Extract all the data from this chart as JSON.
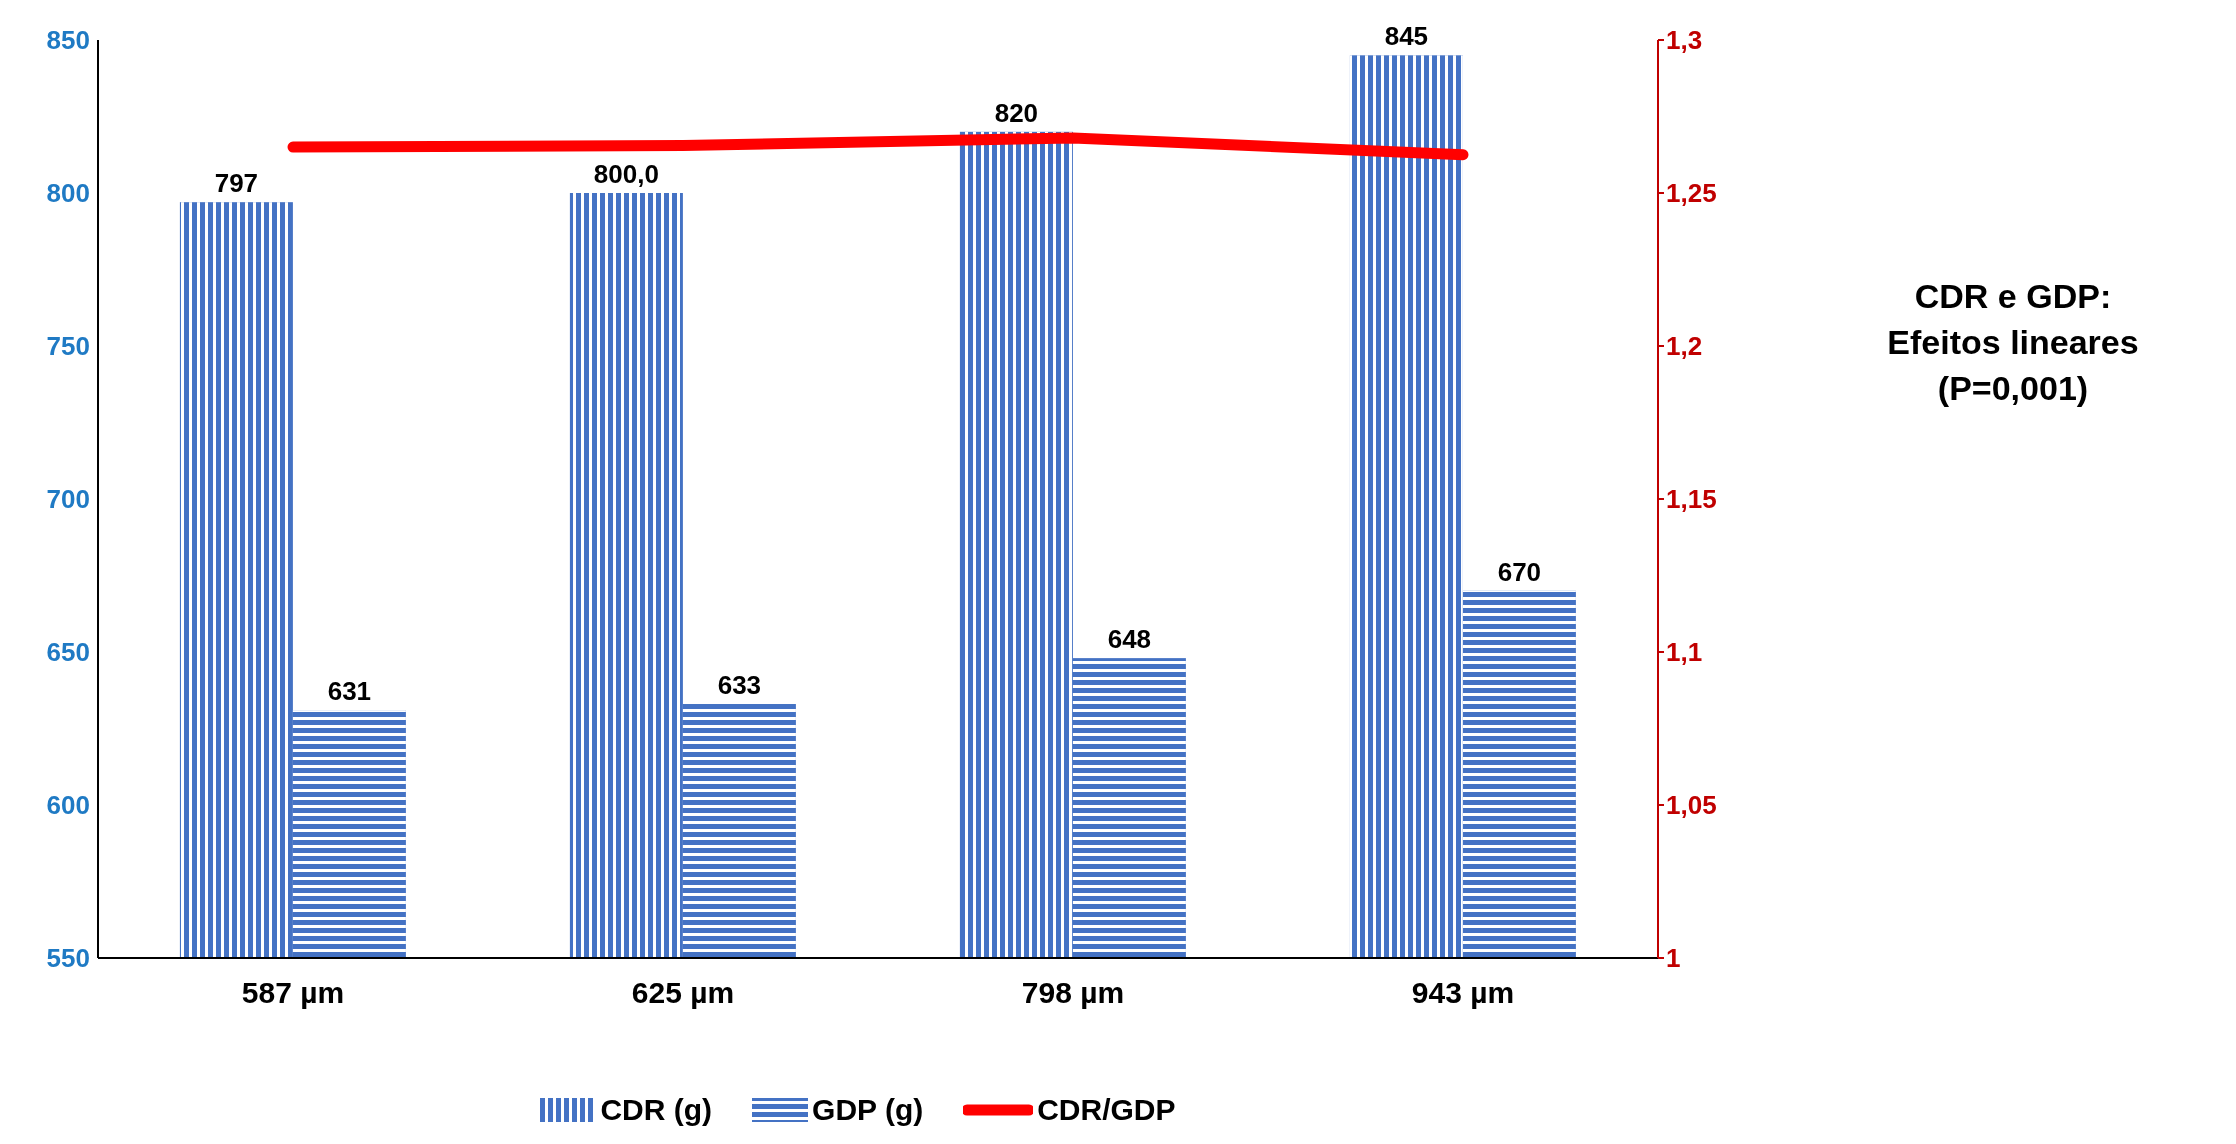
{
  "chart_data": {
    "type": "bar",
    "categories": [
      "587 µm",
      "625 µm",
      "798 µm",
      "943 µm"
    ],
    "series": [
      {
        "name": "CDR (g)",
        "color": "#4472c4",
        "values": [
          797,
          800,
          820,
          845
        ],
        "value_labels": [
          "797",
          "800,0",
          "820",
          "845"
        ]
      },
      {
        "name": "GDP (g)",
        "color": "#4472c4",
        "values": [
          631,
          633,
          648,
          670
        ],
        "value_labels": [
          "631",
          "633",
          "648",
          "670"
        ]
      },
      {
        "name": "CDR/GDP",
        "type": "line",
        "axis": "y2",
        "color": "#ff0000",
        "values": [
          1.265,
          1.2655,
          1.268,
          1.2625
        ]
      }
    ],
    "ylim": [
      550,
      850
    ],
    "yticks": [
      550,
      600,
      650,
      700,
      750,
      800,
      850
    ],
    "y2lim": [
      1,
      1.3
    ],
    "y2ticks": [
      1,
      {
        "value": 1.05,
        "label": "1,05"
      },
      {
        "value": 1.1,
        "label": "1,1"
      },
      {
        "value": 1.15,
        "label": "1,15"
      },
      {
        "value": 1.2,
        "label": "1,2"
      },
      {
        "value": 1.25,
        "label": "1,25"
      },
      {
        "value": 1.3,
        "label": "1,3"
      }
    ],
    "annotations": [
      "CDR e GDP:\nEfeitos lineares\n(P=0,001)"
    ],
    "legend": "bottom",
    "grid": false
  }
}
